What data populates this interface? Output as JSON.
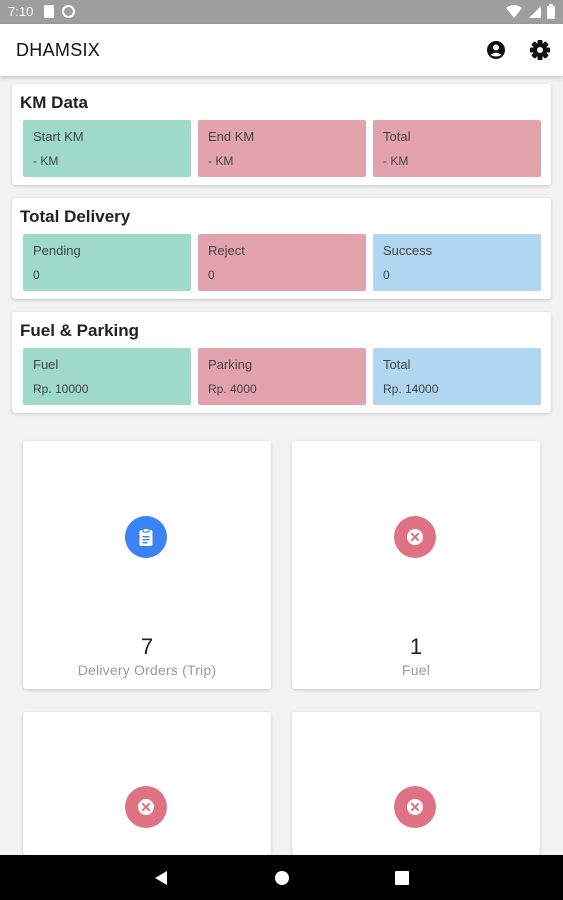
{
  "status_bar": {
    "time": "7:10",
    "icons_left": [
      "sd-card-icon",
      "sync-icon"
    ],
    "icons_right": [
      "wifi-icon",
      "signal-icon",
      "battery-icon"
    ]
  },
  "app_bar": {
    "title": "DHAMSIX",
    "actions": [
      "account-icon",
      "settings-icon"
    ]
  },
  "sections": {
    "km_data": {
      "title": "KM Data",
      "tiles": [
        {
          "label": "Start KM",
          "value": "- KM",
          "color": "#9ed9c9"
        },
        {
          "label": "End KM",
          "value": "- KM",
          "color": "#e3a3ae"
        },
        {
          "label": "Total",
          "value": "- KM",
          "color": "#e3a3ae"
        }
      ]
    },
    "total_delivery": {
      "title": "Total Delivery",
      "tiles": [
        {
          "label": "Pending",
          "value": "0",
          "color": "#9ed9c9"
        },
        {
          "label": "Reject",
          "value": "0",
          "color": "#e3a3ae"
        },
        {
          "label": "Success",
          "value": "0",
          "color": "#b1d6ef"
        }
      ]
    },
    "fuel_parking": {
      "title": "Fuel & Parking",
      "tiles": [
        {
          "label": "Fuel",
          "value": "Rp. 10000",
          "color": "#9ed9c9"
        },
        {
          "label": "Parking",
          "value": "Rp. 4000",
          "color": "#e3a3ae"
        },
        {
          "label": "Total",
          "value": "Rp. 14000",
          "color": "#b1d6ef"
        }
      ]
    }
  },
  "grid": [
    {
      "icon": "clipboard-icon",
      "icon_color": "#3b82f6",
      "count": "7",
      "label": "Delivery Orders (Trip)"
    },
    {
      "icon": "close-circle-icon",
      "icon_color": "#df7384",
      "count": "1",
      "label": "Fuel"
    },
    {
      "icon": "close-circle-icon",
      "icon_color": "#df7384",
      "count": "",
      "label": ""
    },
    {
      "icon": "close-circle-icon",
      "icon_color": "#df7384",
      "count": "",
      "label": ""
    }
  ],
  "nav_bar": {
    "buttons": [
      "back-icon",
      "home-icon",
      "recents-icon"
    ]
  }
}
